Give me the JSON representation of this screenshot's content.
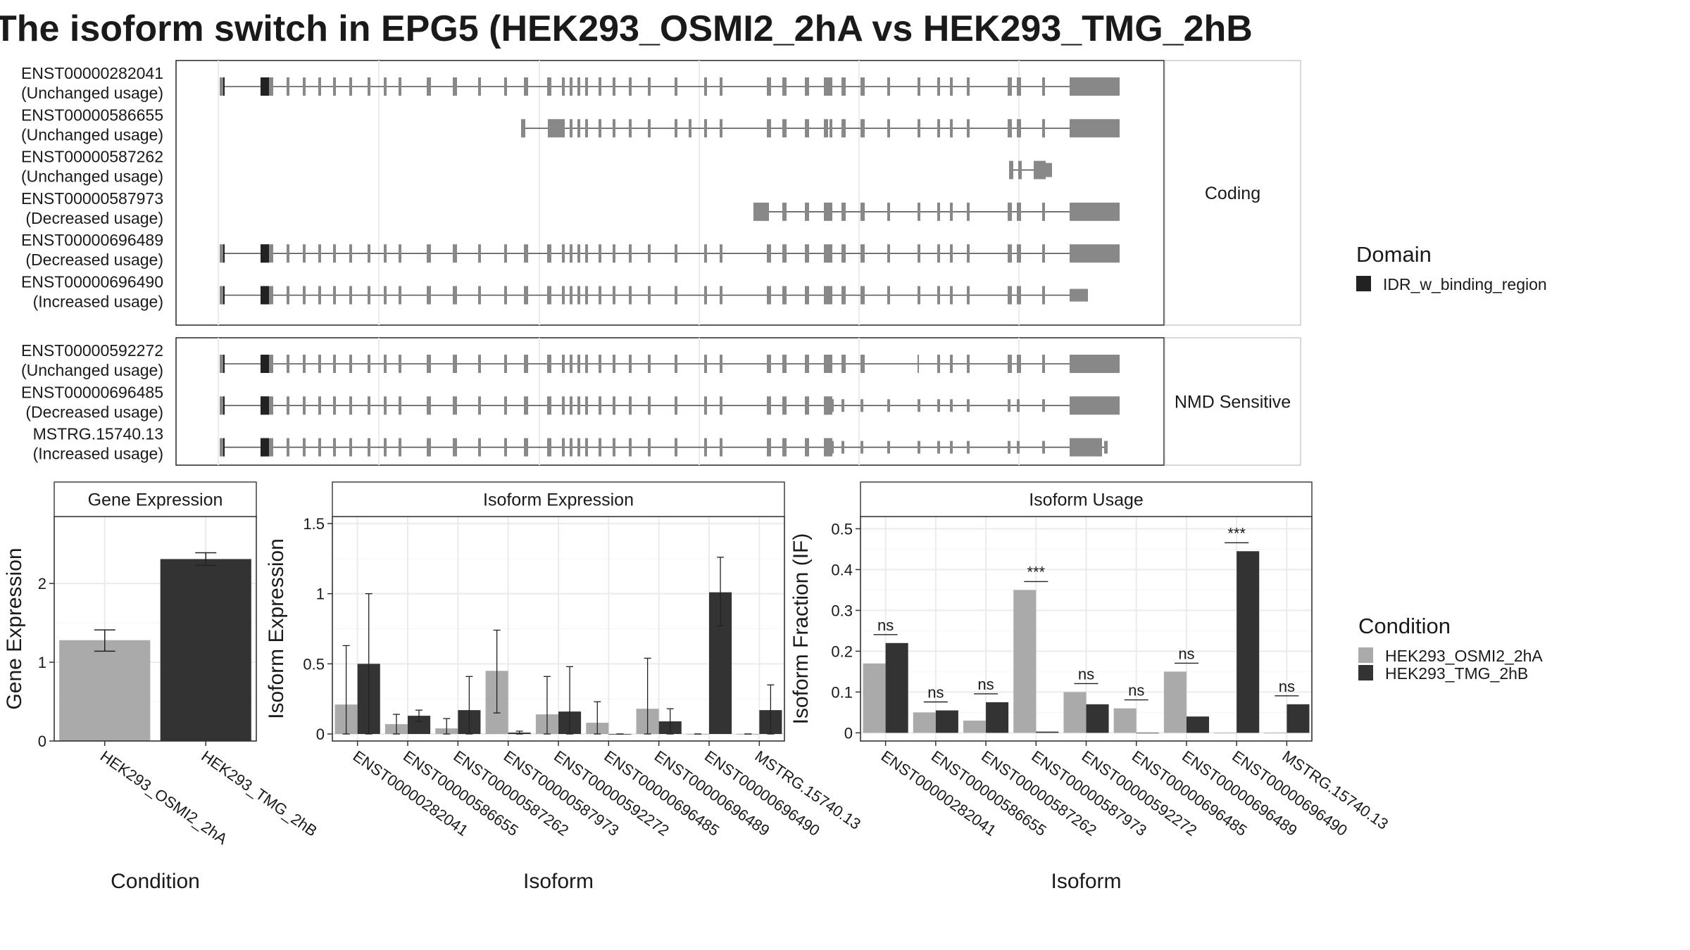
{
  "title": "The isoform switch in EPG5 (HEK293_OSMI2_2hA vs HEK293_TMG_2hB",
  "colors": {
    "exon": "#888888",
    "domain": "#222222",
    "condition_a": "#aaaaaa",
    "condition_b": "#333333",
    "grid": "#ebebeb",
    "border": "#333333",
    "strip_border": "#bdbdbd"
  },
  "structure": {
    "panels": [
      {
        "label": "Coding",
        "transcripts": [
          {
            "id": "ENST00000282041",
            "usage": "(Unchanged usage)",
            "kind": "full",
            "domain": true
          },
          {
            "id": "ENST00000586655",
            "usage": "(Unchanged usage)",
            "kind": "586655",
            "domain": false
          },
          {
            "id": "ENST00000587262",
            "usage": "(Unchanged usage)",
            "kind": "587262",
            "domain": false
          },
          {
            "id": "ENST00000587973",
            "usage": "(Decreased usage)",
            "kind": "587973",
            "domain": false
          },
          {
            "id": "ENST00000696489",
            "usage": "(Decreased usage)",
            "kind": "full",
            "domain": true
          },
          {
            "id": "ENST00000696490",
            "usage": "(Increased usage)",
            "kind": "696490",
            "domain": true
          }
        ]
      },
      {
        "label": "NMD Sensitive",
        "transcripts": [
          {
            "id": "ENST00000592272",
            "usage": "(Unchanged usage)",
            "kind": "592272",
            "domain": true
          },
          {
            "id": "ENST00000696485",
            "usage": "(Decreased usage)",
            "kind": "nmd",
            "domain": true
          },
          {
            "id": "MSTRG.15740.13",
            "usage": "(Increased usage)",
            "kind": "mstrg",
            "domain": true
          }
        ]
      }
    ],
    "legend": {
      "title": "Domain",
      "items": [
        "IDR_w_binding_region"
      ]
    }
  },
  "chart_data": [
    {
      "type": "bar",
      "title": "Gene Expression",
      "xlabel": "Condition",
      "ylabel": "Gene Expression",
      "categories": [
        "HEK293_OSMI2_2hA",
        "HEK293_TMG_2hB"
      ],
      "values": [
        1.28,
        2.31
      ],
      "errors": [
        [
          1.14,
          1.41
        ],
        [
          2.23,
          2.39
        ]
      ],
      "ylim": [
        0,
        2.85
      ],
      "yticks": [
        0,
        1,
        2
      ],
      "grid": true
    },
    {
      "type": "bar",
      "title": "Isoform Expression",
      "xlabel": "Isoform",
      "ylabel": "Isoform Expression",
      "categories": [
        "ENST00000282041",
        "ENST00000586655",
        "ENST00000587262",
        "ENST00000587973",
        "ENST00000592272",
        "ENST00000696485",
        "ENST00000696489",
        "ENST00000696490",
        "MSTRG.15740.13"
      ],
      "series": [
        {
          "name": "HEK293_OSMI2_2hA",
          "values": [
            0.21,
            0.07,
            0.04,
            0.45,
            0.14,
            0.08,
            0.18,
            0.0,
            0.0
          ],
          "errors": [
            [
              0.0,
              0.63
            ],
            [
              0.0,
              0.14
            ],
            [
              0.0,
              0.11
            ],
            [
              0.15,
              0.74
            ],
            [
              0.0,
              0.41
            ],
            [
              0.0,
              0.23
            ],
            [
              0.0,
              0.54
            ],
            [
              0.0,
              0.0
            ],
            [
              0.0,
              0.0
            ]
          ]
        },
        {
          "name": "HEK293_TMG_2hB",
          "values": [
            0.5,
            0.13,
            0.17,
            0.01,
            0.16,
            0.0,
            0.09,
            1.01,
            0.17
          ],
          "errors": [
            [
              0.0,
              1.0
            ],
            [
              0.09,
              0.17
            ],
            [
              0.0,
              0.41
            ],
            [
              0.0,
              0.02
            ],
            [
              0.0,
              0.48
            ],
            [
              0.0,
              0.0
            ],
            [
              0.0,
              0.18
            ],
            [
              0.77,
              1.26
            ],
            [
              0.0,
              0.35
            ]
          ]
        }
      ],
      "ylim": [
        -0.05,
        1.55
      ],
      "yticks": [
        0.0,
        0.5,
        1.0,
        1.5
      ],
      "grid": true
    },
    {
      "type": "bar",
      "title": "Isoform Usage",
      "xlabel": "Isoform",
      "ylabel": "Isoform Fraction (IF)",
      "categories": [
        "ENST00000282041",
        "ENST00000586655",
        "ENST00000587262",
        "ENST00000587973",
        "ENST00000592272",
        "ENST00000696485",
        "ENST00000696489",
        "ENST00000696490",
        "MSTRG.15740.13"
      ],
      "series": [
        {
          "name": "HEK293_OSMI2_2hA",
          "values": [
            0.17,
            0.05,
            0.03,
            0.35,
            0.1,
            0.06,
            0.15,
            0.0,
            0.0
          ]
        },
        {
          "name": "HEK293_TMG_2hB",
          "values": [
            0.22,
            0.055,
            0.075,
            0.003,
            0.07,
            0.0,
            0.04,
            0.445,
            0.07
          ]
        }
      ],
      "significance": [
        "ns",
        "ns",
        "ns",
        "***",
        "ns",
        "ns",
        "ns",
        "***",
        "ns"
      ],
      "ylim": [
        -0.02,
        0.53
      ],
      "yticks": [
        0.0,
        0.1,
        0.2,
        0.3,
        0.4,
        0.5
      ],
      "grid": true
    }
  ],
  "condition_legend": {
    "title": "Condition",
    "items": [
      "HEK293_OSMI2_2hA",
      "HEK293_TMG_2hB"
    ]
  }
}
